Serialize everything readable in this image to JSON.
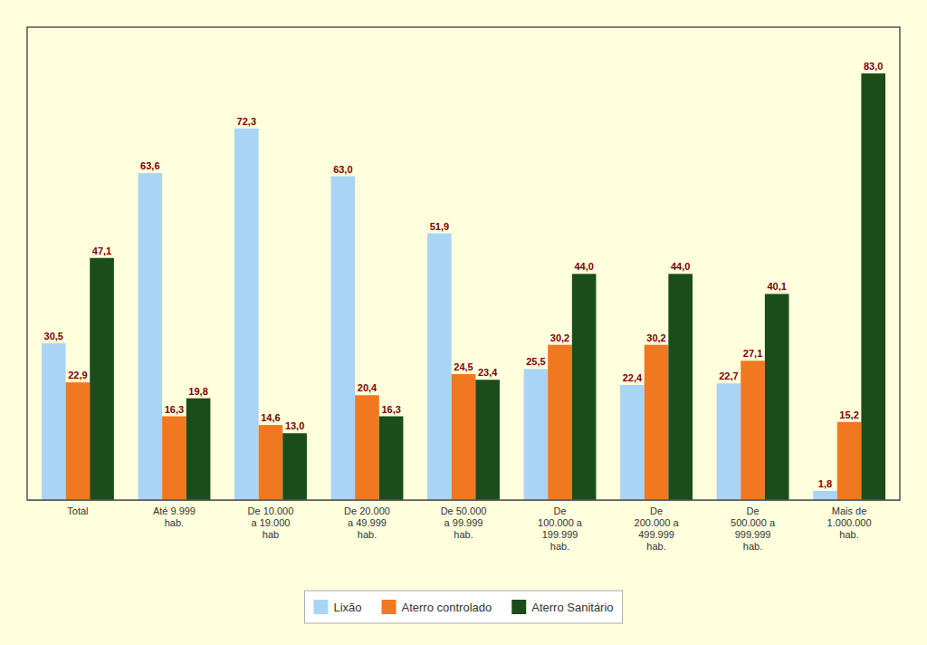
{
  "chart_data": {
    "type": "bar",
    "categories": [
      "Total",
      "Até 9.999\nhab.",
      "De 10.000\na 19.000\nhab",
      "De 20.000\na 49.999\nhab.",
      "De 50.000\na 99.999\nhab.",
      "De\n100.000 a\n199.999\nhab.",
      "De\n200.000 a\n499.999\nhab.",
      "De\n500.000 a\n999.999\nhab.",
      "Mais de\n1.000.000\nhab."
    ],
    "series": [
      {
        "name": "Lixão",
        "color": "#aad4f5",
        "values": [
          30.5,
          63.6,
          72.3,
          63.0,
          51.9,
          25.5,
          22.4,
          22.7,
          1.8
        ],
        "value_labels": [
          "30,5",
          "63,6",
          "72,3",
          "63,0",
          "51,9",
          "25,5",
          "22,4",
          "22,7",
          "1,8"
        ]
      },
      {
        "name": "Aterro controlado",
        "color": "#f07820",
        "values": [
          22.9,
          16.3,
          14.6,
          20.4,
          24.5,
          30.2,
          30.2,
          27.1,
          15.2
        ],
        "value_labels": [
          "22,9",
          "16,3",
          "14,6",
          "20,4",
          "24,5",
          "30,2",
          "30,2",
          "27,1",
          "15,2"
        ]
      },
      {
        "name": "Aterro Sanitário",
        "color": "#1a4d1a",
        "values": [
          47.1,
          19.8,
          13.0,
          16.3,
          23.4,
          44.0,
          44.0,
          40.1,
          83.0
        ],
        "value_labels": [
          "47,1",
          "19,8",
          "13,0",
          "16,3",
          "23,4",
          "44,0",
          "44,0",
          "40,1",
          "83,0"
        ]
      }
    ],
    "ylim": [
      0,
      92
    ],
    "data_labels": true,
    "grid": false,
    "legend": "bottom",
    "tick_labels": "x"
  }
}
